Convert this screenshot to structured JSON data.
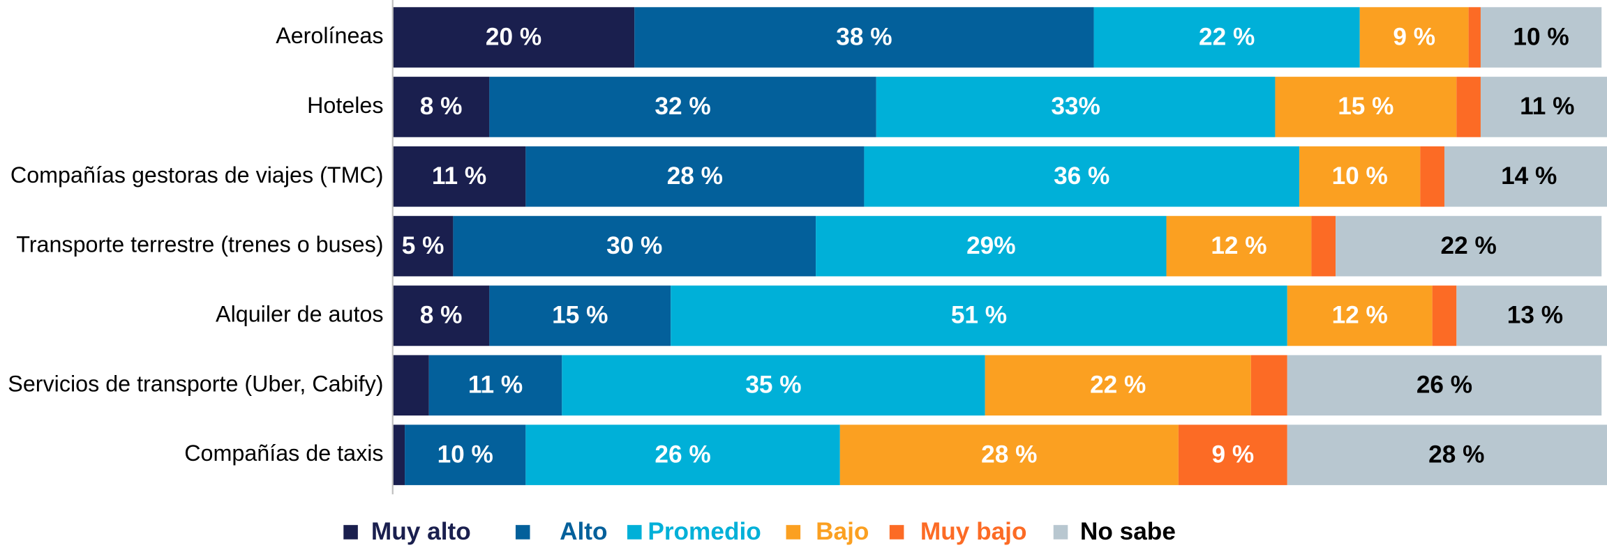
{
  "chart_data": {
    "type": "stacked_barh",
    "categories": [
      "Aerolíneas",
      "Hoteles",
      "Compañías gestoras de viajes (TMC)",
      "Transporte terrestre (trenes o buses)",
      "Alquiler de autos",
      "Servicios de transporte (Uber, Cabify)",
      "Compañías de taxis"
    ],
    "xlim": [
      0,
      100
    ],
    "legend": "bottom",
    "series": [
      {
        "name": "Muy alto",
        "color": "#1a1f4e",
        "text_color": "#ffffff",
        "legend_text_color": "#1a1f4e",
        "values": [
          20,
          8,
          11,
          5,
          8,
          3,
          1
        ],
        "value_labels": [
          "20 %",
          "8 %",
          "11 %",
          "5 %",
          "8 %",
          null,
          null
        ]
      },
      {
        "name": "Alto",
        "color": "#03609b",
        "text_color": "#ffffff",
        "legend_text_color": "#03609b",
        "values": [
          38,
          32,
          28,
          30,
          15,
          11,
          10
        ],
        "value_labels": [
          "38 %",
          "32 %",
          "28 %",
          "30 %",
          "15 %",
          "11 %",
          "10 %"
        ]
      },
      {
        "name": "Promedio",
        "color": "#00b0d8",
        "text_color": "#ffffff",
        "legend_text_color": "#00b0d8",
        "values": [
          22,
          33,
          36,
          29,
          51,
          35,
          26
        ],
        "value_labels": [
          "22 %",
          "33%",
          "36 %",
          "29%",
          "51 %",
          "35 %",
          "26 %"
        ]
      },
      {
        "name": "Bajo",
        "color": "#fba021",
        "text_color": "#ffffff",
        "legend_text_color": "#fba021",
        "values": [
          9,
          15,
          10,
          12,
          12,
          22,
          28
        ],
        "value_labels": [
          "9 %",
          "15 %",
          "10 %",
          "12 %",
          "12 %",
          "22 %",
          "28 %"
        ]
      },
      {
        "name": "Muy bajo",
        "color": "#fc6b25",
        "text_color": "#ffffff",
        "legend_text_color": "#fc6b25",
        "values": [
          1,
          2,
          2,
          2,
          2,
          3,
          9
        ],
        "value_labels": [
          null,
          null,
          null,
          null,
          null,
          null,
          "9 %"
        ]
      },
      {
        "name": "No sabe",
        "color": "#b8c7d0",
        "text_color": "#000000",
        "legend_text_color": "#000000",
        "values": [
          10,
          11,
          14,
          22,
          13,
          26,
          28
        ],
        "value_labels": [
          "10 %",
          "11 %",
          "14 %",
          "22 %",
          "13 %",
          "26 %",
          "28 %"
        ]
      }
    ]
  }
}
